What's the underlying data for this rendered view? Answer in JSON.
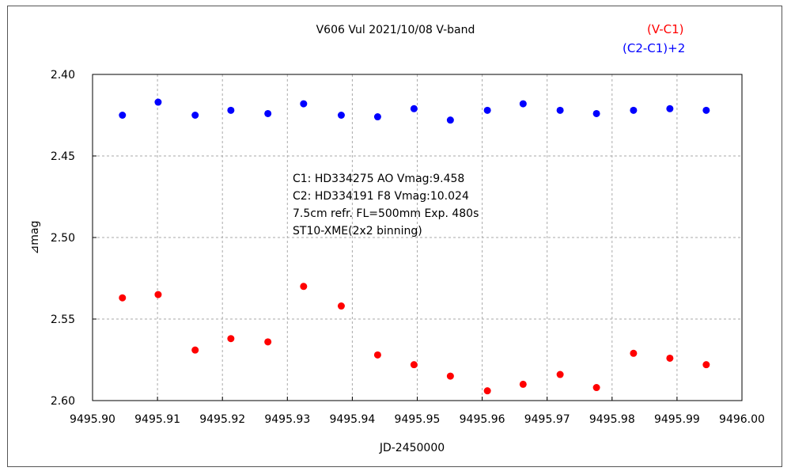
{
  "chart_data": {
    "type": "scatter",
    "title": "V606 Vul   2021/10/08   V-band",
    "xlabel": "JD-2450000",
    "ylabel": "⊿mag",
    "xlim": [
      9495.9,
      9496.0
    ],
    "ylim": [
      2.4,
      2.6
    ],
    "y_inverted": true,
    "grid": true,
    "legend_position": "top-right",
    "x_ticks": [
      "9495.90",
      "9495.91",
      "9495.92",
      "9495.93",
      "9495.94",
      "9495.95",
      "9495.96",
      "9495.97",
      "9495.98",
      "9495.99",
      "9496.00"
    ],
    "y_ticks": [
      "2.40",
      "2.45",
      "2.50",
      "2.55",
      "2.60"
    ],
    "annotations": [
      "C1: HD334275 AO  Vmag:9.458",
      "C2: HD334191 F8   Vmag:10.024",
      "7.5cm refr. FL=500mm Exp. 480s",
      "ST10-XME(2x2 binning)"
    ],
    "x": [
      9495.9046,
      9495.9101,
      9495.9158,
      9495.9213,
      9495.927,
      9495.9325,
      9495.9383,
      9495.9439,
      9495.9495,
      9495.9551,
      9495.9608,
      9495.9663,
      9495.972,
      9495.9776,
      9495.9833,
      9495.9889,
      9495.9945
    ],
    "series": [
      {
        "name": "(V-C1)",
        "color": "#ff0000",
        "values": [
          2.537,
          2.535,
          2.569,
          2.562,
          2.564,
          2.53,
          2.542,
          2.572,
          2.578,
          2.585,
          2.594,
          2.59,
          2.584,
          2.592,
          2.571,
          2.574,
          2.578
        ]
      },
      {
        "name": "(C2-C1)+2",
        "color": "#0000ff",
        "values": [
          2.425,
          2.417,
          2.425,
          2.422,
          2.424,
          2.418,
          2.425,
          2.426,
          2.421,
          2.428,
          2.422,
          2.418,
          2.422,
          2.424,
          2.422,
          2.421,
          2.422
        ]
      }
    ]
  }
}
